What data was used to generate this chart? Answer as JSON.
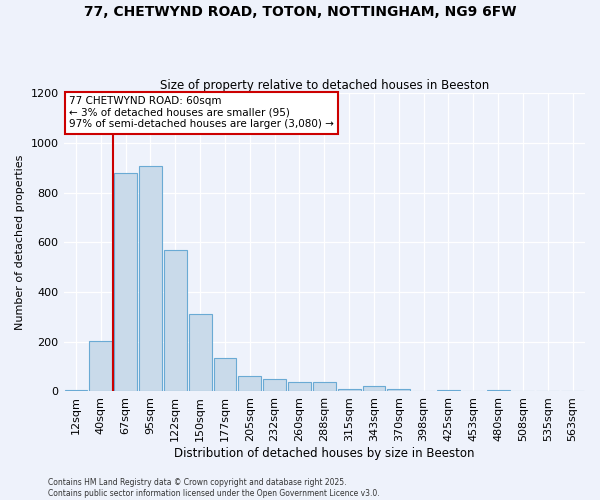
{
  "title": "77, CHETWYND ROAD, TOTON, NOTTINGHAM, NG9 6FW",
  "subtitle": "Size of property relative to detached houses in Beeston",
  "xlabel": "Distribution of detached houses by size in Beeston",
  "ylabel": "Number of detached properties",
  "bar_color": "#c9daea",
  "bar_edge_color": "#6aaad4",
  "background_color": "#eef2fb",
  "grid_color": "#ffffff",
  "categories": [
    "12sqm",
    "40sqm",
    "67sqm",
    "95sqm",
    "122sqm",
    "150sqm",
    "177sqm",
    "205sqm",
    "232sqm",
    "260sqm",
    "288sqm",
    "315sqm",
    "343sqm",
    "370sqm",
    "398sqm",
    "425sqm",
    "453sqm",
    "480sqm",
    "508sqm",
    "535sqm",
    "563sqm"
  ],
  "values": [
    5,
    205,
    880,
    905,
    570,
    310,
    135,
    62,
    50,
    38,
    38,
    10,
    20,
    8,
    3,
    5,
    0,
    5,
    0,
    0,
    0
  ],
  "ylim": [
    0,
    1200
  ],
  "yticks": [
    0,
    200,
    400,
    600,
    800,
    1000,
    1200
  ],
  "vline_position": 1.5,
  "vline_color": "#cc0000",
  "annotation_title": "77 CHETWYND ROAD: 60sqm",
  "annotation_line1": "← 3% of detached houses are smaller (95)",
  "annotation_line2": "97% of semi-detached houses are larger (3,080) →",
  "annotation_box_facecolor": "#ffffff",
  "annotation_box_edgecolor": "#cc0000",
  "footer1": "Contains HM Land Registry data © Crown copyright and database right 2025.",
  "footer2": "Contains public sector information licensed under the Open Government Licence v3.0."
}
